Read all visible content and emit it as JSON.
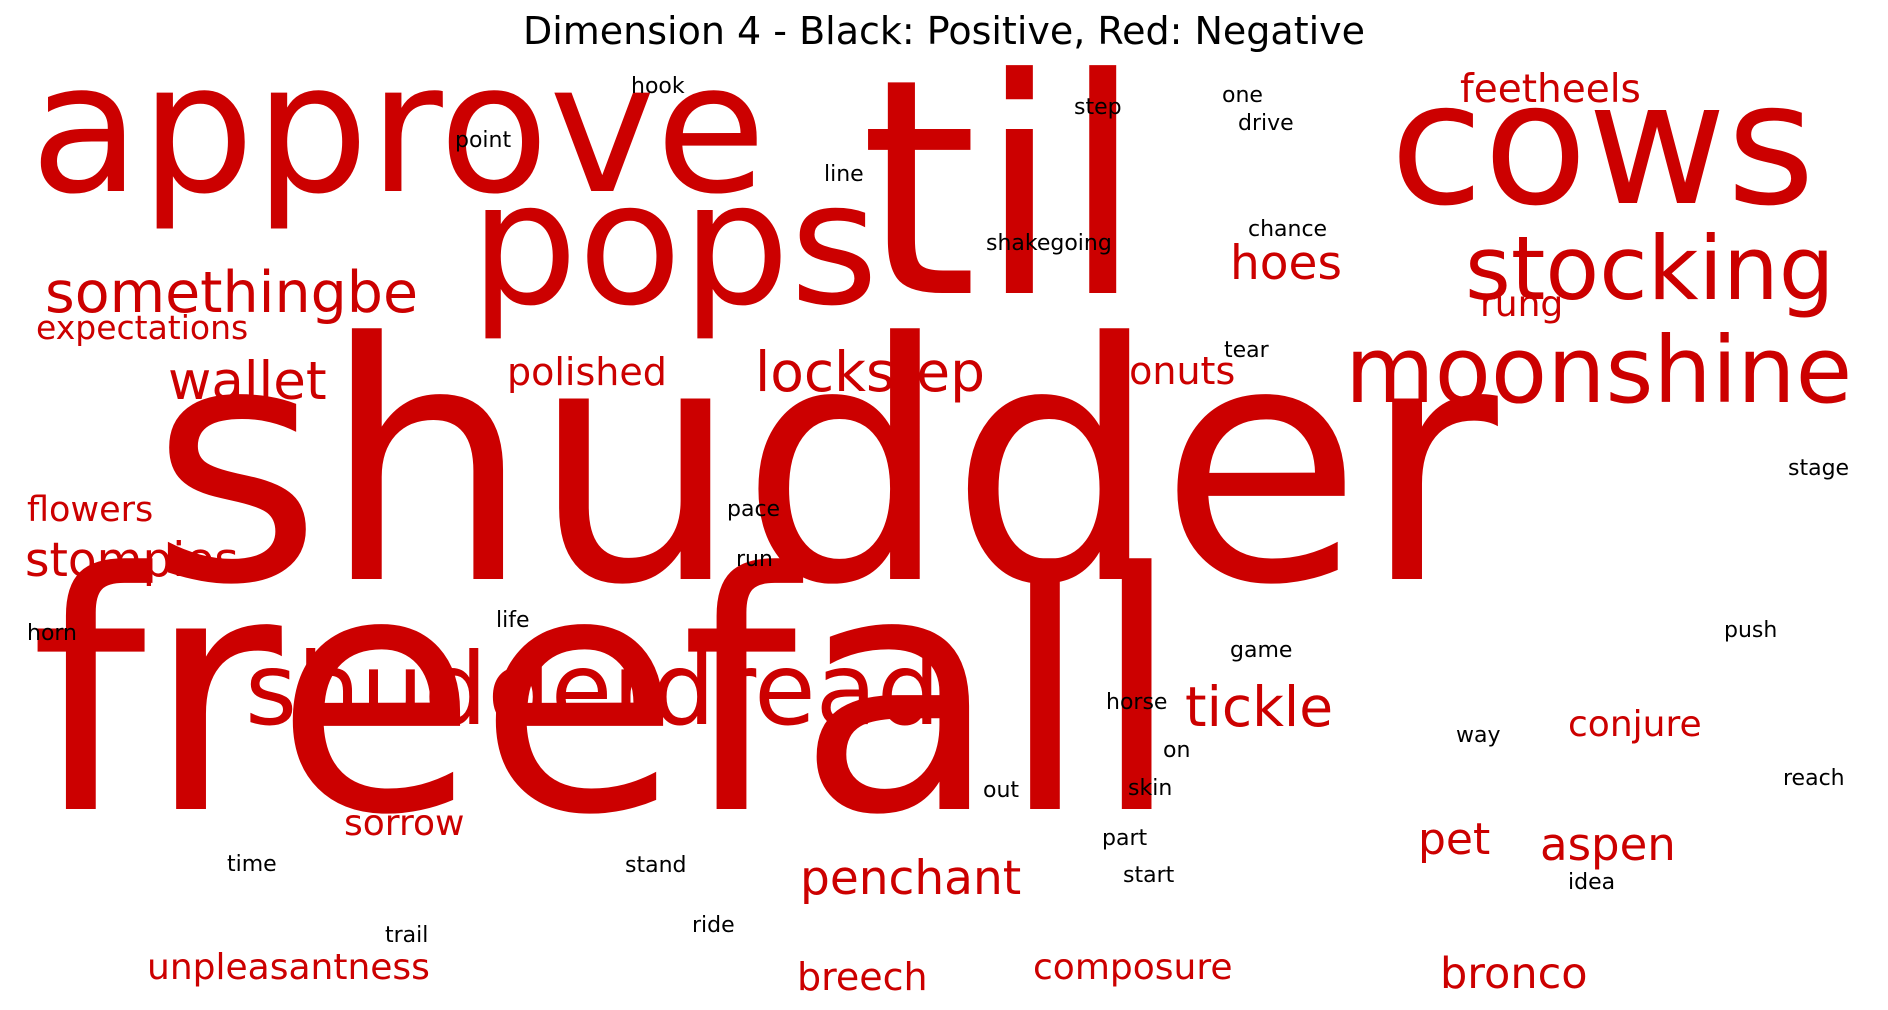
{
  "title": "Dimension 4 - Black: Positive, Red: Negative",
  "colors": {
    "positive": "#000000",
    "negative": "#cc0000"
  },
  "words": [
    {
      "text": "shudder",
      "sign": "negative"
    },
    {
      "text": "freefall",
      "sign": "negative"
    },
    {
      "text": "til",
      "sign": "negative"
    },
    {
      "text": "approve",
      "sign": "negative"
    },
    {
      "text": "cows",
      "sign": "negative"
    },
    {
      "text": "pops",
      "sign": "negative"
    },
    {
      "text": "shudderdread",
      "sign": "negative"
    },
    {
      "text": "moonshine",
      "sign": "negative"
    },
    {
      "text": "stocking",
      "sign": "negative"
    },
    {
      "text": "somethingbe",
      "sign": "negative"
    },
    {
      "text": "lockstep",
      "sign": "negative"
    },
    {
      "text": "tickle",
      "sign": "negative"
    },
    {
      "text": "wallet",
      "sign": "negative"
    },
    {
      "text": "hoes",
      "sign": "negative"
    },
    {
      "text": "stompies",
      "sign": "negative"
    },
    {
      "text": "penchant",
      "sign": "negative"
    },
    {
      "text": "aspen",
      "sign": "negative"
    },
    {
      "text": "feetheels",
      "sign": "negative"
    },
    {
      "text": "bronco",
      "sign": "negative"
    },
    {
      "text": "pet",
      "sign": "negative"
    },
    {
      "text": "polished",
      "sign": "negative"
    },
    {
      "text": "donuts",
      "sign": "negative"
    },
    {
      "text": "conjure",
      "sign": "negative"
    },
    {
      "text": "sorrow",
      "sign": "negative"
    },
    {
      "text": "breech",
      "sign": "negative"
    },
    {
      "text": "composure",
      "sign": "negative"
    },
    {
      "text": "unpleasantness",
      "sign": "negative"
    },
    {
      "text": "flowers",
      "sign": "negative"
    },
    {
      "text": "expectations",
      "sign": "negative"
    },
    {
      "text": "rung",
      "sign": "negative"
    },
    {
      "text": "hook",
      "sign": "positive"
    },
    {
      "text": "point",
      "sign": "positive"
    },
    {
      "text": "step",
      "sign": "positive"
    },
    {
      "text": "one",
      "sign": "positive"
    },
    {
      "text": "drive",
      "sign": "positive"
    },
    {
      "text": "line",
      "sign": "positive"
    },
    {
      "text": "chance",
      "sign": "positive"
    },
    {
      "text": "shakegoing",
      "sign": "positive"
    },
    {
      "text": "tear",
      "sign": "positive"
    },
    {
      "text": "stage",
      "sign": "positive"
    },
    {
      "text": "pace",
      "sign": "positive"
    },
    {
      "text": "run",
      "sign": "positive"
    },
    {
      "text": "life",
      "sign": "positive"
    },
    {
      "text": "horn",
      "sign": "positive"
    },
    {
      "text": "game",
      "sign": "positive"
    },
    {
      "text": "push",
      "sign": "positive"
    },
    {
      "text": "horse",
      "sign": "positive"
    },
    {
      "text": "way",
      "sign": "positive"
    },
    {
      "text": "on",
      "sign": "positive"
    },
    {
      "text": "reach",
      "sign": "positive"
    },
    {
      "text": "out",
      "sign": "positive"
    },
    {
      "text": "skin",
      "sign": "positive"
    },
    {
      "text": "part",
      "sign": "positive"
    },
    {
      "text": "time",
      "sign": "positive"
    },
    {
      "text": "stand",
      "sign": "positive"
    },
    {
      "text": "start",
      "sign": "positive"
    },
    {
      "text": "idea",
      "sign": "positive"
    },
    {
      "text": "trail",
      "sign": "positive"
    },
    {
      "text": "ride",
      "sign": "positive"
    }
  ]
}
